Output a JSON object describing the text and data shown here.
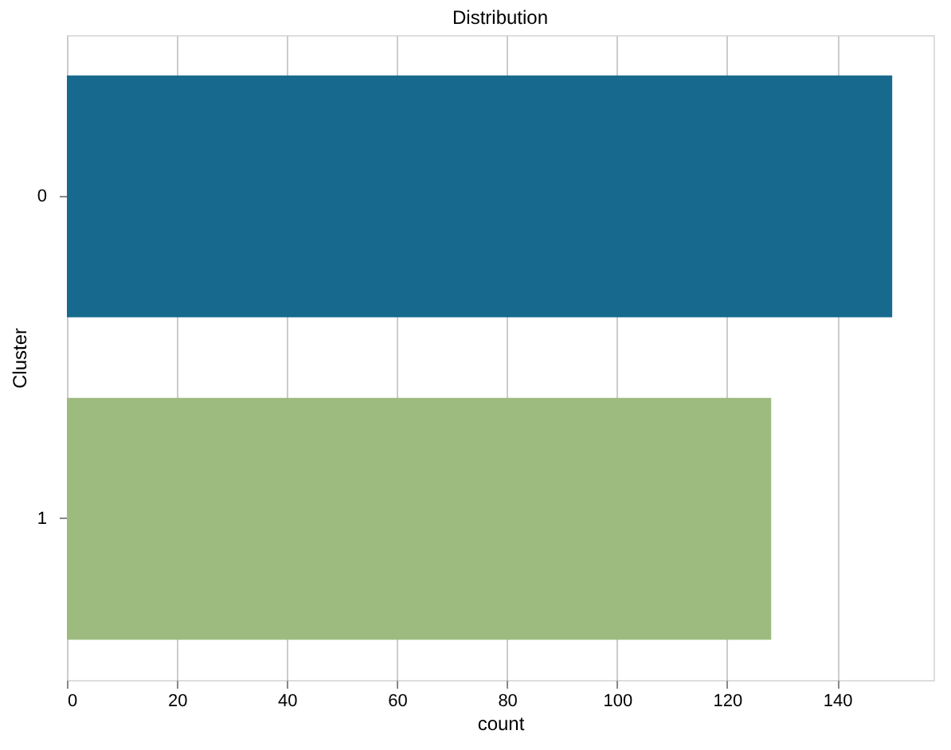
{
  "chart_data": {
    "type": "bar",
    "orientation": "horizontal",
    "title": "Distribution",
    "xlabel": "count",
    "ylabel": "Cluster",
    "categories": [
      "0",
      "1"
    ],
    "values": [
      150,
      128
    ],
    "colors": [
      "#176a8d",
      "#9dbb7f"
    ],
    "xlim": [
      0,
      157.5
    ],
    "xticks": [
      0,
      20,
      40,
      60,
      80,
      100,
      120,
      140
    ],
    "grid": "x"
  }
}
